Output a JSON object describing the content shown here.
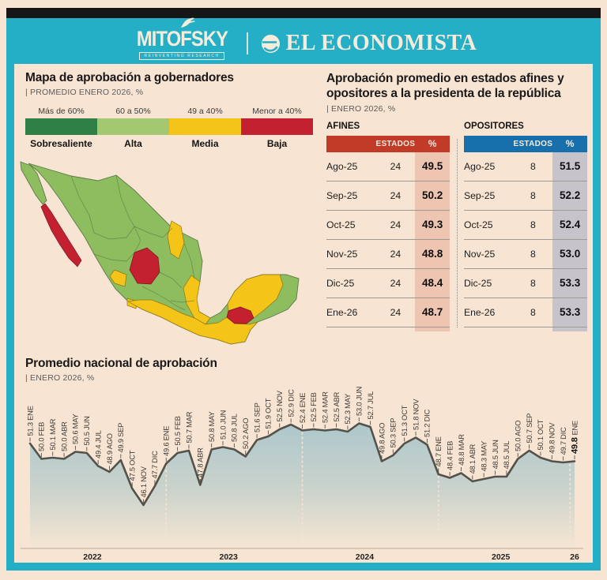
{
  "page": {
    "bg": "#f8e4d2",
    "teal": "#25afc6",
    "top_bar": "#161616"
  },
  "header": {
    "mitofsky_logo": "MITOFSKY",
    "mitofsky_tagline": "REINVENTING RESEARCH",
    "economista_logo": "EL ECONOMISTA"
  },
  "map_section": {
    "title": "Mapa de aprobación a gobernadores",
    "subtitle": "| PROMEDIO ENERO 2026, %",
    "legend": [
      {
        "range": "Más de 60%",
        "label": "Sobresaliente",
        "color": "#2f8047"
      },
      {
        "range": "60 a 50%",
        "label": "Alta",
        "color": "#a3c870"
      },
      {
        "range": "49 a 40%",
        "label": "Media",
        "color": "#f5c418"
      },
      {
        "range": "Menor a 40%",
        "label": "Baja",
        "color": "#c32030"
      }
    ],
    "map_base_color": "#8dbd5f"
  },
  "tables_section": {
    "title": "Aprobación promedio en estados afines y opositores a la presidenta de la república",
    "subtitle": "| ENERO 2026, %",
    "columns": [
      "ESTADOS",
      "%"
    ],
    "months": [
      "Ago-25",
      "Sep-25",
      "Oct-25",
      "Nov-25",
      "Dic-25",
      "Ene-26"
    ],
    "tables": [
      {
        "name": "AFINES",
        "estados": 24,
        "header_color": "#c23a28",
        "band_color": "#eec5b1",
        "values": [
          49.5,
          50.2,
          49.3,
          48.8,
          48.4,
          48.7
        ]
      },
      {
        "name": "OPOSITORES",
        "estados": 8,
        "header_color": "#176fac",
        "band_color": "#c6c3ca",
        "values": [
          51.5,
          52.2,
          52.4,
          53.0,
          53.3,
          53.3
        ]
      }
    ]
  },
  "chart_section": {
    "title": "Promedio nacional de aprobación",
    "subtitle": "| ENERO 2026, %"
  },
  "chart_data": {
    "type": "area",
    "title": "Promedio nacional de aprobación",
    "subtitle": "ENERO 2026, %",
    "categories": [
      "ENE",
      "FEB",
      "MAR",
      "ABR",
      "MAY",
      "JUN",
      "JUL",
      "AGO",
      "SEP",
      "OCT",
      "NOV",
      "DIC",
      "ENE",
      "FEB",
      "MAR",
      "ABR",
      "MAY",
      "JUN",
      "JUL",
      "AGO",
      "SEP",
      "OCT",
      "NOV",
      "DIC",
      "ENE",
      "FEB",
      "MAR",
      "ABR",
      "MAY",
      "JUN",
      "JUL",
      "AGO",
      "SEP",
      "OCT",
      "NOV",
      "DIC",
      "ENE",
      "FEB",
      "MAR",
      "ABR",
      "MAY",
      "JUN",
      "JUL",
      "AGO",
      "SEP",
      "OCT",
      "NOV",
      "DIC",
      "ENE"
    ],
    "values": [
      51.3,
      50.0,
      50.1,
      50.0,
      50.6,
      50.5,
      49.4,
      48.9,
      49.9,
      47.5,
      46.1,
      47.7,
      49.6,
      50.5,
      50.7,
      47.8,
      50.8,
      51.0,
      50.8,
      50.2,
      51.6,
      51.9,
      52.5,
      52.9,
      52.4,
      52.5,
      52.4,
      52.5,
      52.3,
      53.0,
      52.7,
      49.8,
      50.3,
      51.3,
      51.8,
      51.2,
      48.7,
      48.4,
      48.8,
      48.1,
      48.3,
      48.5,
      48.5,
      50.0,
      50.7,
      50.1,
      49.8,
      49.7,
      49.8
    ],
    "year_labels": [
      "2022",
      "2023",
      "2024",
      "2025",
      "26"
    ],
    "ylim": [
      42.5,
      53.5
    ],
    "line_color": "#53524b",
    "area_top_color": "#adc7cc",
    "area_bottom_color": "#f6e6d3",
    "last_point_bold": true,
    "legend_position": "none",
    "grid": false
  }
}
